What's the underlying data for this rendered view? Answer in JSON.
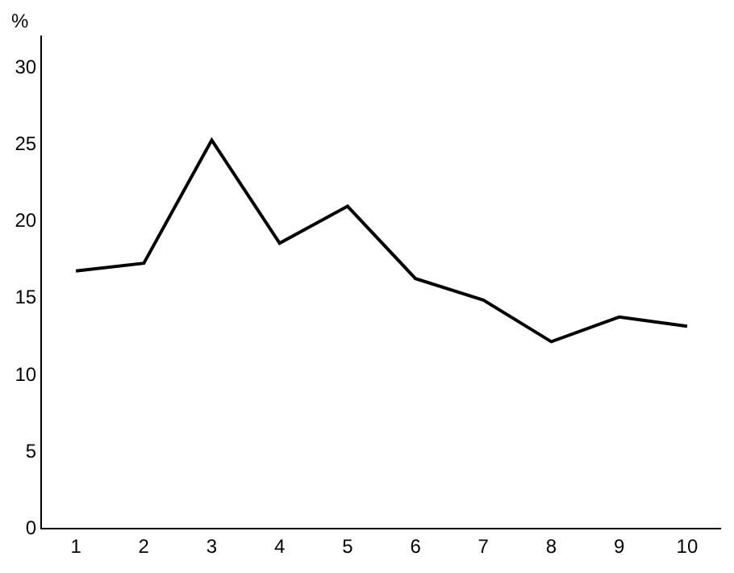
{
  "chart_data": {
    "type": "line",
    "ylabel": "%",
    "categories": [
      "1",
      "2",
      "3",
      "4",
      "5",
      "6",
      "7",
      "8",
      "9",
      "10"
    ],
    "series": [
      {
        "color": "#000000",
        "values": [
          16.7,
          17.2,
          25.2,
          18.5,
          20.9,
          16.2,
          14.8,
          12.1,
          13.7,
          13.1
        ]
      }
    ],
    "ylim": [
      0,
      32
    ],
    "yticks": [
      0,
      5,
      10,
      15,
      20,
      25,
      30
    ],
    "marker": "none",
    "line_style": "solid"
  }
}
